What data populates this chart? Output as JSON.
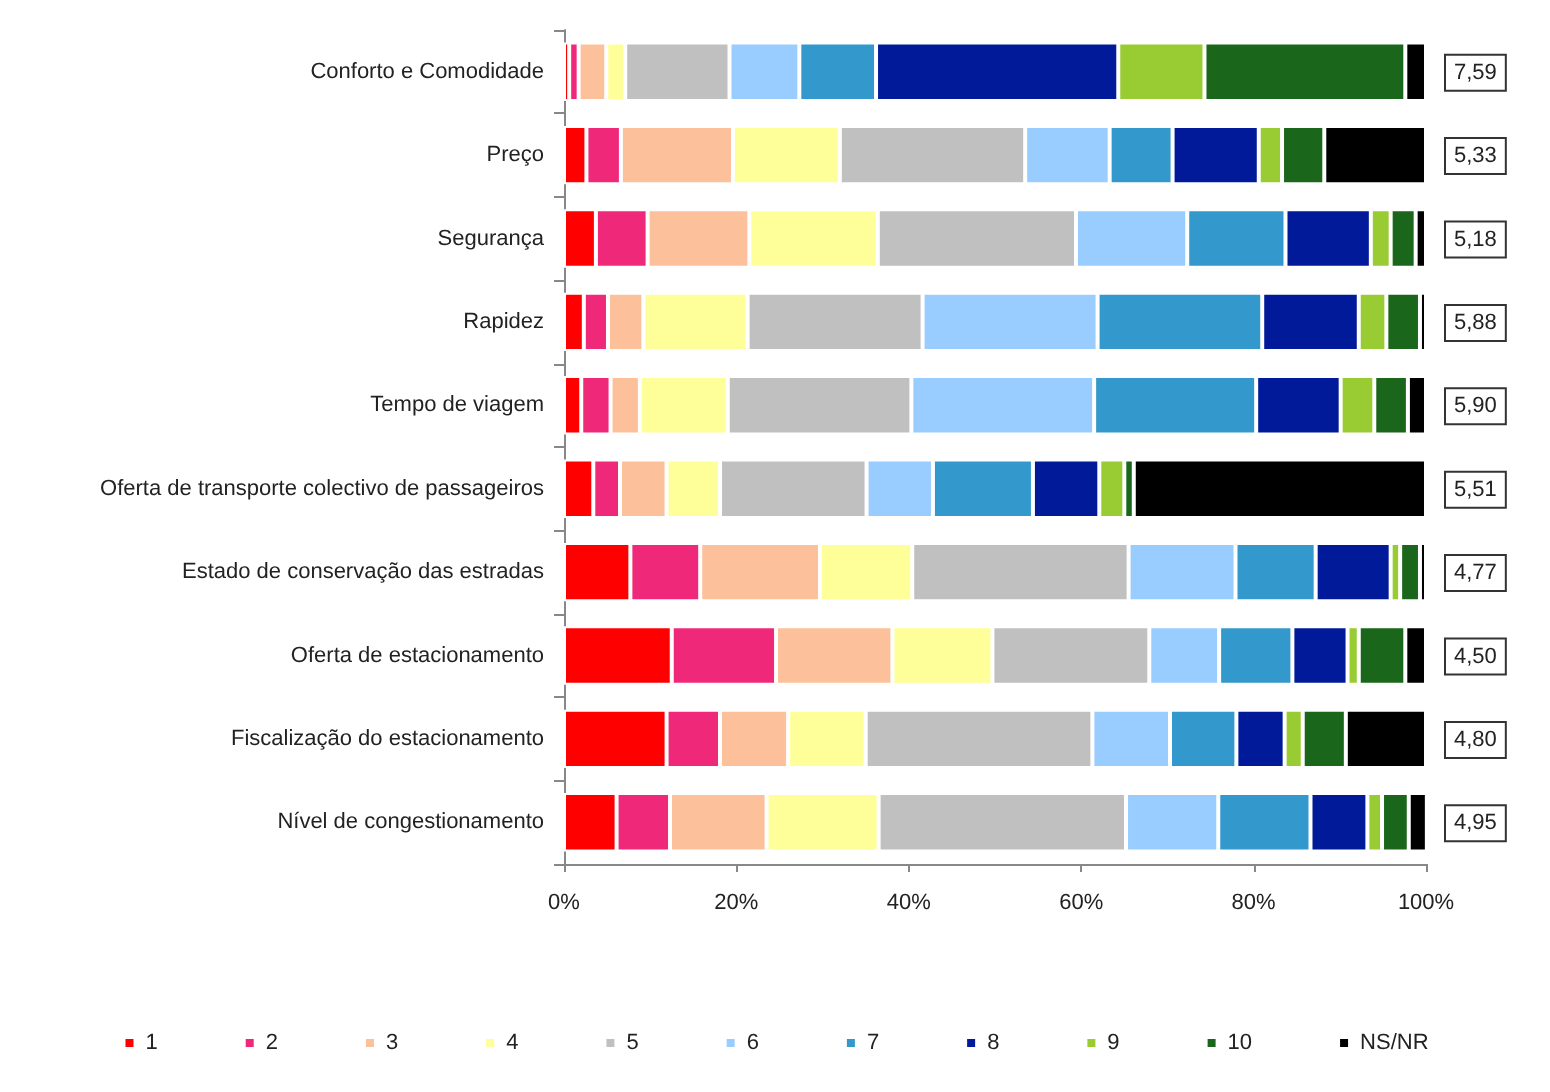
{
  "chart_data": {
    "type": "bar",
    "orientation": "horizontal",
    "stacked": true,
    "categories": [
      "Conforto e Comodidade",
      "Preço",
      "Segurança",
      "Rapidez",
      "Tempo de viagem",
      "Oferta de transporte colectivo de passageiros",
      "Estado de conservação das estradas",
      "Oferta de estacionamento",
      "Fiscalização do estacionamento",
      "Nível de congestionamento"
    ],
    "series": [
      {
        "name": "1",
        "color": "#ff0000",
        "values": [
          0.6,
          2.6,
          3.7,
          2.3,
          2.0,
          3.4,
          7.7,
          12.5,
          11.9,
          6.1
        ]
      },
      {
        "name": "2",
        "color": "#f0287a",
        "values": [
          1.1,
          4.0,
          6.0,
          2.8,
          3.4,
          3.1,
          8.1,
          12.1,
          6.2,
          6.2
        ]
      },
      {
        "name": "3",
        "color": "#fcc09a",
        "values": [
          3.2,
          13.0,
          11.8,
          4.1,
          3.4,
          5.4,
          13.9,
          13.5,
          7.9,
          11.2
        ]
      },
      {
        "name": "4",
        "color": "#ffff99",
        "values": [
          2.2,
          12.4,
          14.9,
          12.1,
          10.2,
          6.2,
          10.7,
          11.6,
          9.0,
          13.0
        ]
      },
      {
        "name": "5",
        "color": "#c0c0c0",
        "values": [
          12.1,
          21.5,
          23.0,
          20.3,
          21.3,
          17.0,
          25.1,
          18.2,
          26.3,
          28.7
        ]
      },
      {
        "name": "6",
        "color": "#99ccff",
        "values": [
          8.1,
          9.8,
          12.9,
          20.3,
          21.2,
          7.7,
          12.4,
          8.1,
          9.0,
          10.7
        ]
      },
      {
        "name": "7",
        "color": "#3399cc",
        "values": [
          8.9,
          7.3,
          11.4,
          19.1,
          18.8,
          11.6,
          9.3,
          8.5,
          7.7,
          10.7
        ]
      },
      {
        "name": "8",
        "color": "#001a99",
        "values": [
          28.1,
          10.0,
          9.9,
          11.2,
          9.8,
          7.7,
          8.7,
          6.4,
          5.6,
          6.6
        ]
      },
      {
        "name": "9",
        "color": "#99cc33",
        "values": [
          10.0,
          2.7,
          2.3,
          3.2,
          3.9,
          2.9,
          1.1,
          1.3,
          2.1,
          1.7
        ]
      },
      {
        "name": "10",
        "color": "#1a661a",
        "values": [
          23.3,
          4.9,
          2.9,
          3.9,
          3.9,
          1.1,
          2.3,
          5.4,
          5.0,
          3.1
        ]
      },
      {
        "name": "NS/NR",
        "color": "#000000",
        "values": [
          2.4,
          11.8,
          1.2,
          0.7,
          2.1,
          33.9,
          0.7,
          2.4,
          9.3,
          2.1
        ]
      }
    ],
    "xlim": [
      0,
      100
    ],
    "xticks": [
      {
        "value": 0,
        "label": "0%"
      },
      {
        "value": 20,
        "label": "20%"
      },
      {
        "value": 40,
        "label": "40%"
      },
      {
        "value": 60,
        "label": "60%"
      },
      {
        "value": 80,
        "label": "80%"
      },
      {
        "value": 100,
        "label": "100%"
      }
    ],
    "annotations": [
      "7,59",
      "5,33",
      "5,18",
      "5,88",
      "5,90",
      "5,51",
      "4,77",
      "4,50",
      "4,80",
      "4,95"
    ],
    "grid": false,
    "legend": "bottom"
  }
}
